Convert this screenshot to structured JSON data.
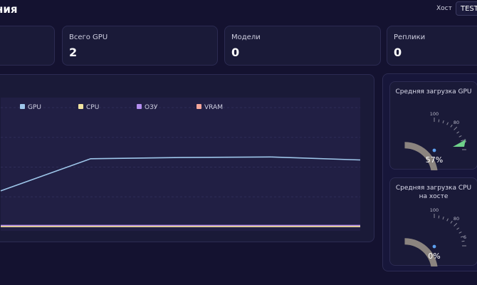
{
  "header": {
    "title": "ния",
    "host_label": "Хост",
    "host_value": "TEST"
  },
  "stats": [
    {
      "label": "",
      "value": ""
    },
    {
      "label": "Всего GPU",
      "value": "2"
    },
    {
      "label": "Модели",
      "value": "0"
    },
    {
      "label": "Реплики",
      "value": "0"
    }
  ],
  "chart_data": {
    "type": "line",
    "title": "",
    "xlabel": "",
    "ylabel": "",
    "x": [
      0,
      1,
      2,
      3,
      4
    ],
    "ylim": [
      0,
      100
    ],
    "grid": true,
    "legend_position": "top",
    "series": [
      {
        "name": "GPU",
        "color": "#9ec6ea",
        "values": [
          30,
          57,
          58,
          58.5,
          56
        ]
      },
      {
        "name": "CPU",
        "color": "#f1e3a0",
        "values": [
          0,
          0,
          0,
          0,
          0
        ]
      },
      {
        "name": "ОЗУ",
        "color": "#b48ef0",
        "values": [
          1,
          1,
          1,
          1,
          1
        ]
      },
      {
        "name": "VRAM",
        "color": "#f4a69a",
        "values": [
          0.5,
          0.5,
          0.5,
          0.5,
          0.5
        ]
      }
    ]
  },
  "gauges": [
    {
      "title": "Средняя загрузка GPU",
      "value": 57,
      "value_text": "57%",
      "tick_labels": [
        "100",
        "80",
        "6"
      ],
      "pointer_color": "#6fd28a"
    },
    {
      "title": "Средняя загрузка CPU на хосте",
      "value": 0,
      "value_text": "0%",
      "tick_labels": [
        "100",
        "80",
        "6"
      ],
      "pointer_color": "#6fd28a"
    }
  ]
}
